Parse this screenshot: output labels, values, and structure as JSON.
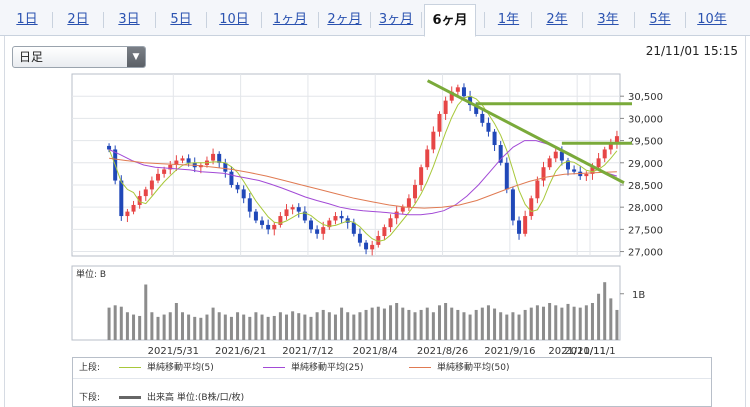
{
  "tabs": [
    {
      "label": "1日",
      "selected": false
    },
    {
      "label": "2日",
      "selected": false
    },
    {
      "label": "3日",
      "selected": false
    },
    {
      "label": "5日",
      "selected": false
    },
    {
      "label": "10日",
      "selected": false
    },
    {
      "label": "1ヶ月",
      "selected": false
    },
    {
      "label": "2ヶ月",
      "selected": false
    },
    {
      "label": "3ヶ月",
      "selected": false
    },
    {
      "label": "6ヶ月",
      "selected": true
    },
    {
      "label": "1年",
      "selected": false
    },
    {
      "label": "2年",
      "selected": false
    },
    {
      "label": "3年",
      "selected": false
    },
    {
      "label": "5年",
      "selected": false
    },
    {
      "label": "10年",
      "selected": false
    }
  ],
  "period_select": {
    "value": "日足"
  },
  "timestamp": "21/11/01 15:15",
  "colors": {
    "up_candle": "#e64646",
    "down_candle": "#2048b8",
    "ma5": "#a8c83a",
    "ma25": "#a24ad6",
    "ma50": "#e07a52",
    "trendline": "#7aaa3a",
    "volume_bar": "#8c8c8c",
    "tab_link": "#2a52b0"
  },
  "legend": {
    "upper_label": "上段:",
    "lower_label": "下段:",
    "ma5": "単純移動平均(5)",
    "ma25": "単純移動平均(25)",
    "ma50": "単純移動平均(50)",
    "volume": "出来高 単位:(B株/口/枚)"
  },
  "chart_data": {
    "type": "candlestick",
    "price_axis": {
      "ticks": [
        "30,500",
        "30,000",
        "29,500",
        "29,000",
        "28,500",
        "28,000",
        "27,500",
        "27,000"
      ],
      "ylim": [
        26900,
        31000
      ]
    },
    "volume_axis": {
      "unit_label": "単位: B",
      "ticks": [
        "1B"
      ]
    },
    "x_tick_labels": [
      "2021/5/31",
      "2021/6/21",
      "2021/7/12",
      "2021/8/4",
      "2021/8/26",
      "2021/9/16",
      "2021/10/11",
      "2021/11/1"
    ],
    "ohlc_close_estimate": [
      29300,
      28600,
      27800,
      27900,
      28050,
      28250,
      28400,
      28600,
      28750,
      28850,
      28950,
      29050,
      29100,
      29000,
      28900,
      28950,
      29050,
      29200,
      29000,
      28800,
      28500,
      28400,
      28200,
      27900,
      27700,
      27600,
      27500,
      27600,
      27800,
      27950,
      28000,
      27900,
      27700,
      27500,
      27400,
      27550,
      27700,
      27800,
      27750,
      27650,
      27400,
      27200,
      27050,
      27150,
      27350,
      27550,
      27750,
      27900,
      28000,
      28200,
      28500,
      28900,
      29300,
      29700,
      30100,
      30400,
      30600,
      30700,
      30500,
      30300,
      30100,
      29900,
      29700,
      29400,
      29000,
      28400,
      27700,
      27400,
      27800,
      28200,
      28600,
      28900,
      29100,
      29250,
      29050,
      28850,
      28800,
      28700,
      28750,
      28900,
      29100,
      29300,
      29450,
      29600
    ],
    "ma25_estimate": [
      29300,
      29180,
      29050,
      28950,
      28900,
      28880,
      28860,
      28840,
      28800,
      28780,
      28760,
      28700,
      28650,
      28600,
      28520,
      28430,
      28330,
      28230,
      28150,
      28080,
      28000,
      27950,
      27920,
      27900,
      27880,
      27850,
      27830,
      27830,
      27860,
      27920,
      28050,
      28250,
      28500,
      28800,
      29100,
      29350,
      29500,
      29500,
      29420,
      29320,
      29200,
      29050,
      28900,
      28780,
      28700
    ],
    "ma50_estimate": [
      29100,
      29050,
      29000,
      28980,
      28960,
      28940,
      28900,
      28850,
      28780,
      28700,
      28600,
      28500,
      28400,
      28300,
      28200,
      28120,
      28050,
      28000,
      27980,
      28000,
      28050,
      28150,
      28300,
      28450,
      28580,
      28680,
      28740,
      28760,
      28780,
      28800
    ],
    "volume_estimate": [
      0.7,
      0.75,
      0.72,
      0.6,
      0.55,
      0.52,
      1.2,
      0.6,
      0.5,
      0.55,
      0.6,
      0.8,
      0.6,
      0.55,
      0.5,
      0.48,
      0.55,
      0.7,
      0.6,
      0.55,
      0.5,
      0.6,
      0.55,
      0.5,
      0.6,
      0.55,
      0.5,
      0.52,
      0.6,
      0.55,
      0.62,
      0.58,
      0.55,
      0.5,
      0.6,
      0.65,
      0.6,
      0.55,
      0.7,
      0.6,
      0.55,
      0.6,
      0.65,
      0.7,
      0.72,
      0.68,
      0.75,
      0.8,
      0.7,
      0.65,
      0.6,
      0.65,
      0.7,
      0.6,
      0.75,
      0.8,
      0.7,
      0.65,
      0.6,
      0.55,
      0.65,
      0.7,
      0.75,
      0.68,
      0.6,
      0.55,
      0.6,
      0.55,
      0.65,
      0.7,
      0.75,
      0.72,
      0.8,
      0.75,
      0.7,
      0.78,
      0.72,
      0.7,
      0.75,
      0.8,
      1.0,
      1.25,
      0.9,
      0.65
    ],
    "trendlines": [
      {
        "kind": "descending",
        "from": [
          55,
          30850
        ],
        "to": [
          90,
          28550
        ]
      },
      {
        "kind": "horizontal",
        "value": 30330,
        "from_index": 60
      },
      {
        "kind": "horizontal",
        "value": 29440,
        "from_index": 74
      }
    ]
  }
}
